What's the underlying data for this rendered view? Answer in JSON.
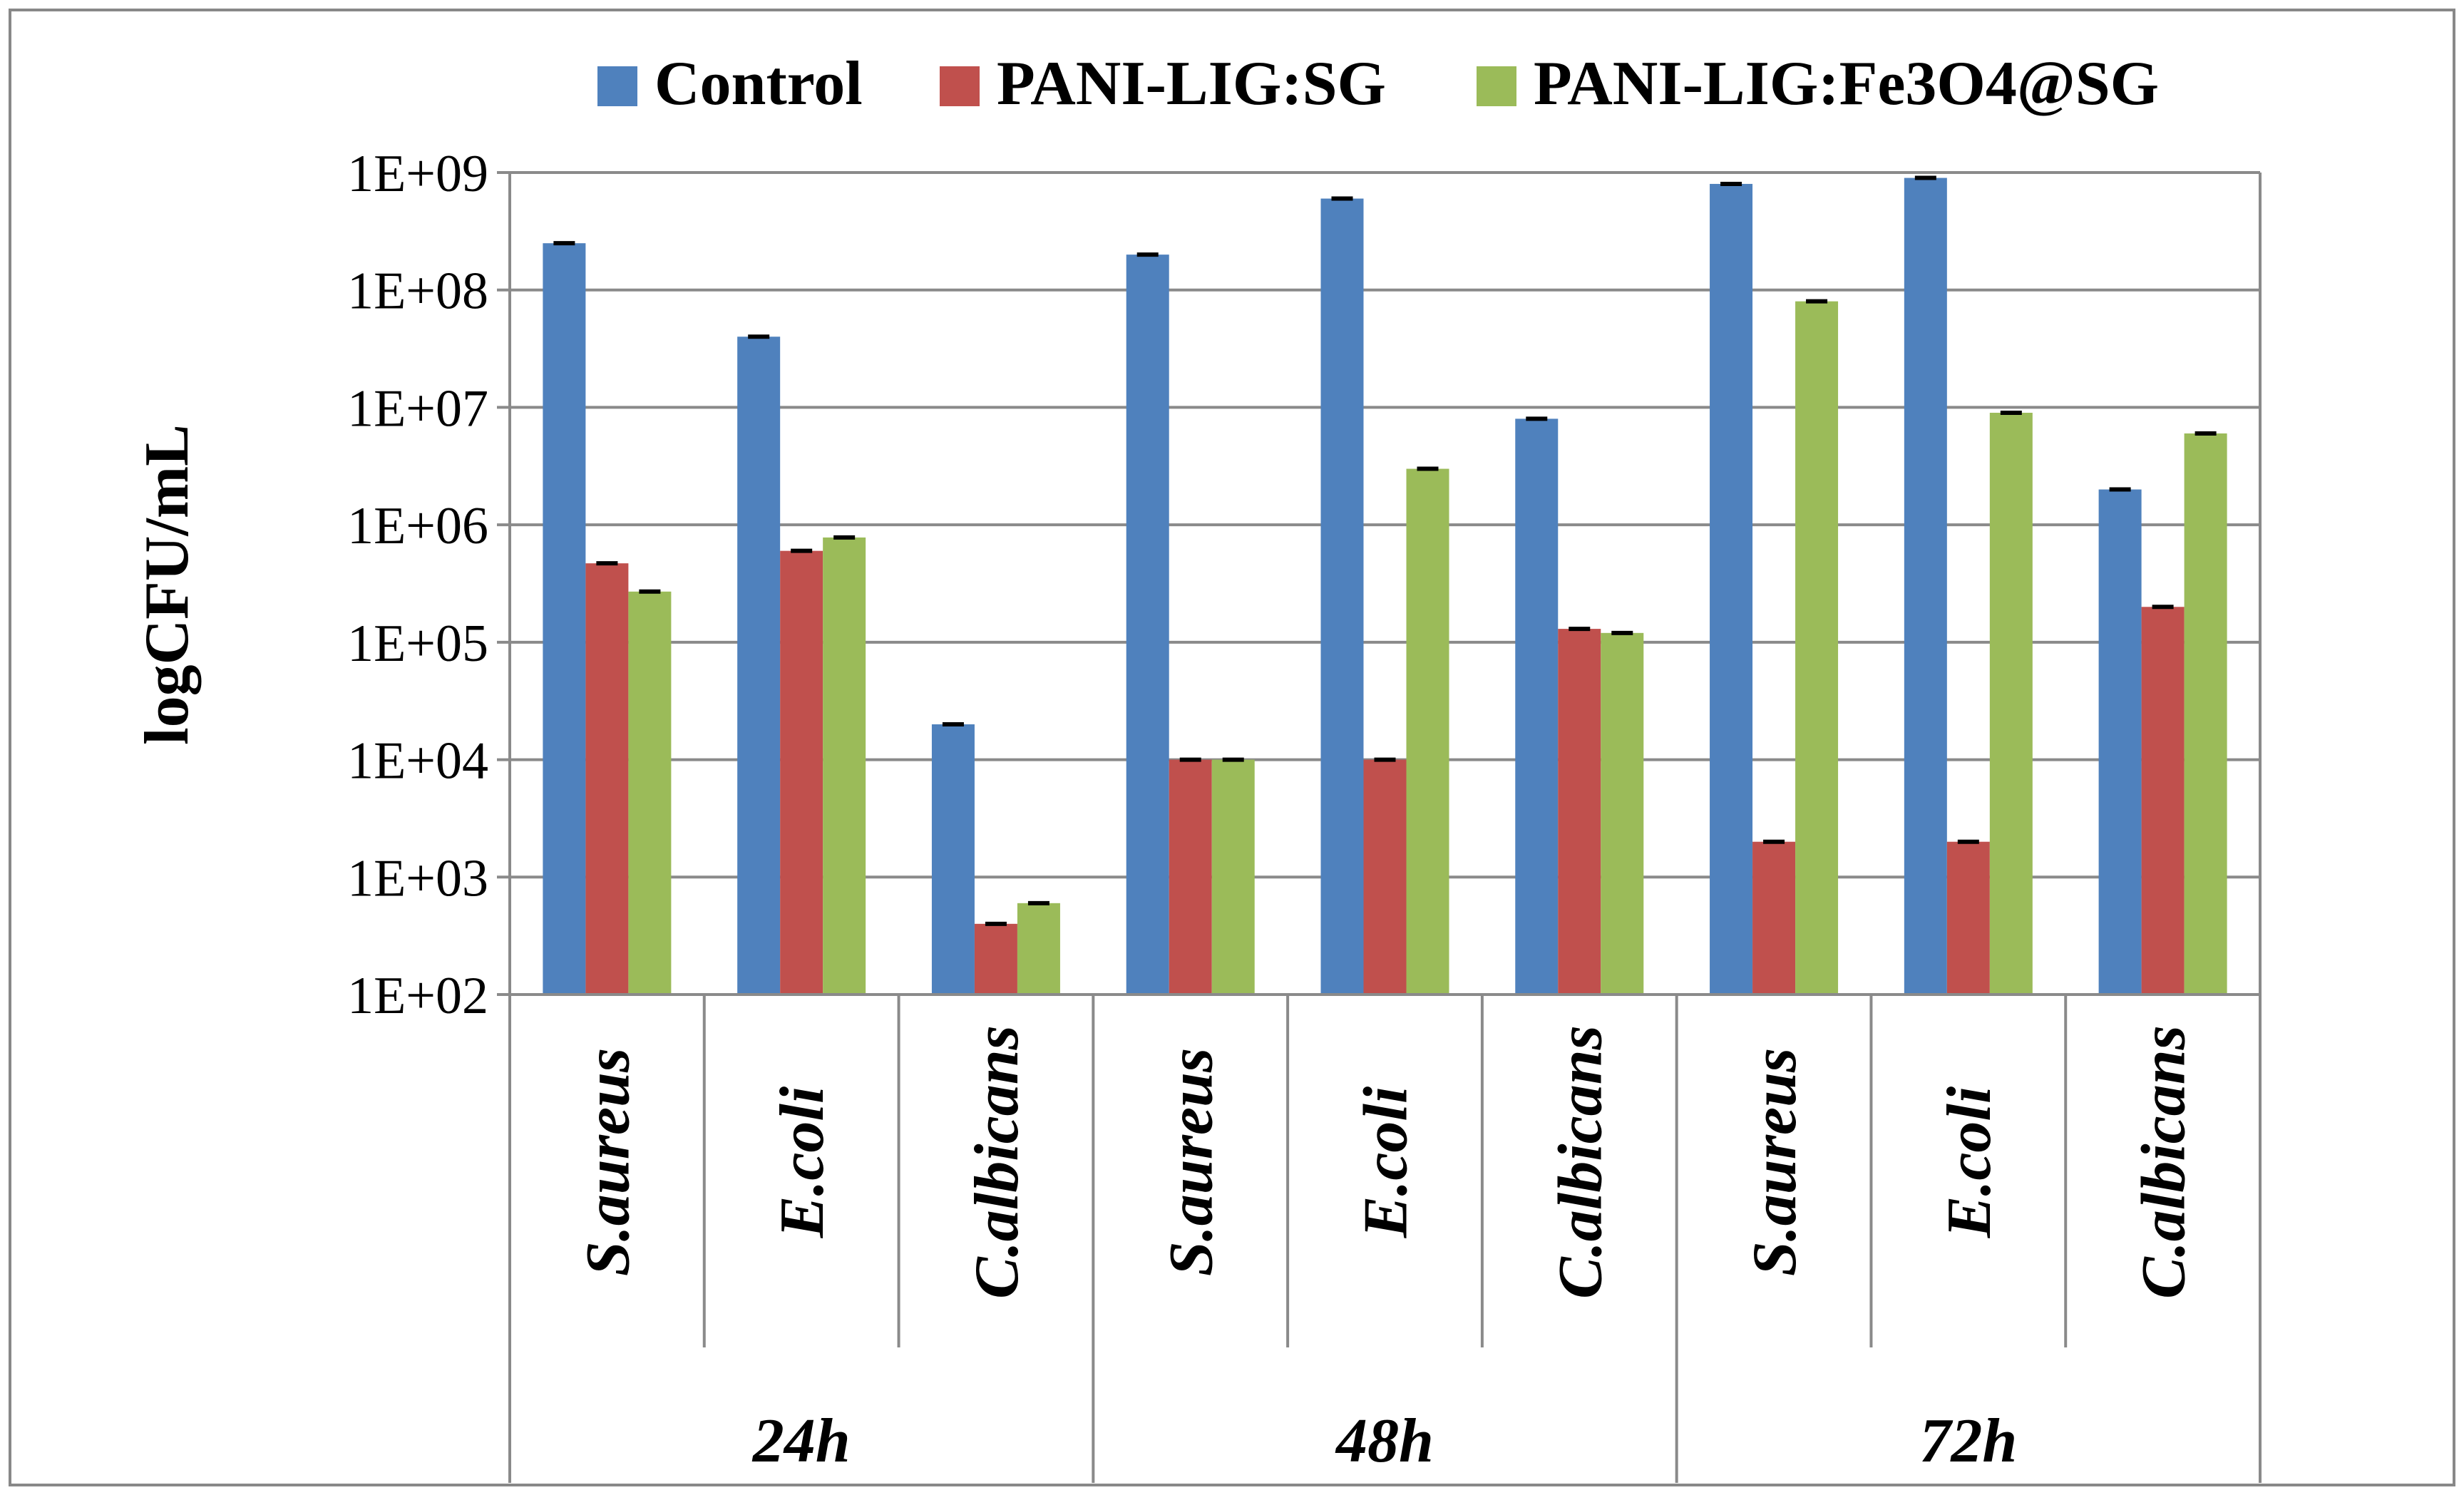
{
  "chart_data": {
    "type": "bar",
    "scale": "log",
    "title": "",
    "xlabel": "",
    "ylabel": "logCFU/mL",
    "ylim": [
      100,
      1000000000
    ],
    "yticks": [
      {
        "value": 100,
        "label": "1E+02"
      },
      {
        "value": 1000,
        "label": "1E+03"
      },
      {
        "value": 10000,
        "label": "1E+04"
      },
      {
        "value": 100000,
        "label": "1E+05"
      },
      {
        "value": 1000000,
        "label": "1E+06"
      },
      {
        "value": 10000000,
        "label": "1E+07"
      },
      {
        "value": 100000000,
        "label": "1E+08"
      },
      {
        "value": 1000000000,
        "label": "1E+09"
      }
    ],
    "grid": true,
    "legend_position": "top",
    "groups": [
      {
        "label": "24h",
        "categories": [
          "S.aureus",
          "E.coli",
          "C.albicans"
        ]
      },
      {
        "label": "48h",
        "categories": [
          "S.aureus",
          "E.coli",
          "C.albicans"
        ]
      },
      {
        "label": "72h",
        "categories": [
          "S.aureus",
          "E.coli",
          "C.albicans"
        ]
      }
    ],
    "categories": [
      "S.aureus",
      "E.coli",
      "C.albicans",
      "S.aureus",
      "E.coli",
      "C.albicans",
      "S.aureus",
      "E.coli",
      "C.albicans"
    ],
    "series": [
      {
        "name": "Control",
        "color": "#4F81BD",
        "values": [
          250000000,
          40000000,
          20000,
          200000000,
          600000000,
          8000000,
          800000000,
          900000000,
          2000000
        ]
      },
      {
        "name": "PANI-LIG:SG",
        "color": "#C0504D",
        "values": [
          470000,
          600000,
          400,
          10000,
          10000,
          130000,
          2000,
          2000,
          200000
        ]
      },
      {
        "name": "PANI-LIG:Fe3O4@SG",
        "color": "#9BBB59",
        "values": [
          270000,
          780000,
          600,
          10000,
          3000000,
          120000,
          80000000,
          9000000,
          6000000
        ]
      }
    ]
  }
}
